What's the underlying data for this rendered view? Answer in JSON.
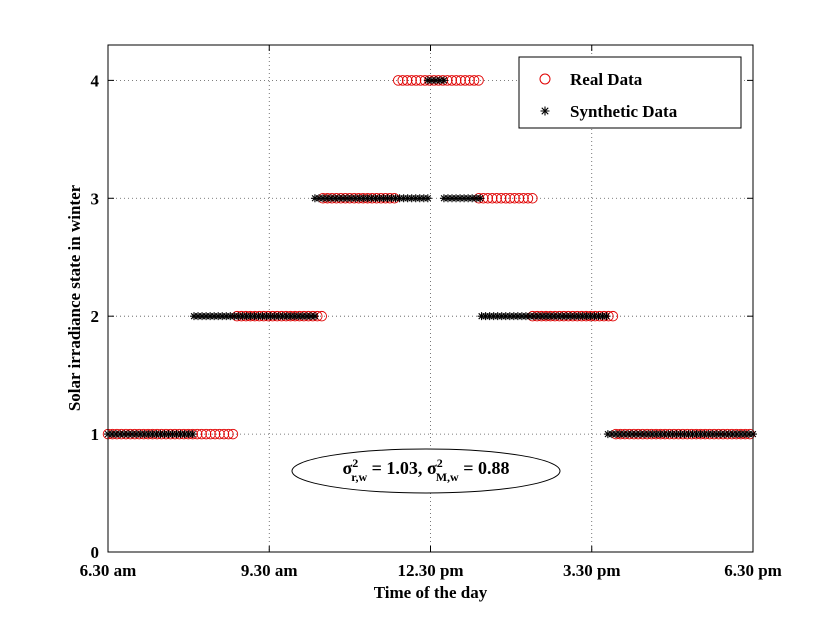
{
  "chart_data": {
    "type": "scatter",
    "title": "",
    "xlabel": "Time of the day",
    "ylabel": "Solar irradiance state in winter",
    "x_unit": "hours since 6.30 am",
    "xlim": [
      0,
      12
    ],
    "ylim": [
      0,
      4.3
    ],
    "x_ticks": [
      {
        "value": 0,
        "label": "6.30 am"
      },
      {
        "value": 3,
        "label": "9.30 am"
      },
      {
        "value": 6,
        "label": "12.30 pm"
      },
      {
        "value": 9,
        "label": "3.30 pm"
      },
      {
        "value": 12,
        "label": "6.30 pm"
      }
    ],
    "y_ticks": [
      0,
      1,
      2,
      3,
      4
    ],
    "grid": true,
    "legend_position": "top-right",
    "annotation": {
      "sigma": "σ",
      "sub1": "r,w",
      "val1": " = 1.03, ",
      "sub2": "M,w",
      "val2": " = 0.88",
      "sup": "2"
    },
    "series": [
      {
        "name": "Real Data",
        "marker": "circle",
        "color": "#e00000",
        "segments": [
          {
            "state": 1,
            "x_start": 0.0,
            "x_end": 2.35,
            "step": 0.083
          },
          {
            "state": 2,
            "x_start": 2.4,
            "x_end": 4.0,
            "step": 0.083
          },
          {
            "state": 3,
            "x_start": 4.0,
            "x_end": 5.4,
            "step": 0.083
          },
          {
            "state": 4,
            "x_start": 5.4,
            "x_end": 6.9,
            "step": 0.083
          },
          {
            "state": 3,
            "x_start": 6.9,
            "x_end": 7.9,
            "step": 0.083
          },
          {
            "state": 2,
            "x_start": 7.9,
            "x_end": 9.45,
            "step": 0.083
          },
          {
            "state": 1,
            "x_start": 9.45,
            "x_end": 12.0,
            "step": 0.083
          }
        ]
      },
      {
        "name": "Synthetic Data",
        "marker": "asterisk",
        "color": "#000000",
        "segments": [
          {
            "state": 1,
            "x_start": 0.0,
            "x_end": 1.6,
            "step": 0.075
          },
          {
            "state": 2,
            "x_start": 1.6,
            "x_end": 3.85,
            "step": 0.075
          },
          {
            "state": 3,
            "x_start": 3.85,
            "x_end": 5.95,
            "step": 0.075
          },
          {
            "state": 4,
            "x_start": 5.95,
            "x_end": 6.25,
            "step": 0.075
          },
          {
            "state": 3,
            "x_start": 6.25,
            "x_end": 6.95,
            "step": 0.075
          },
          {
            "state": 2,
            "x_start": 6.95,
            "x_end": 9.3,
            "step": 0.075
          },
          {
            "state": 1,
            "x_start": 9.3,
            "x_end": 12.0,
            "step": 0.075
          }
        ]
      }
    ]
  }
}
